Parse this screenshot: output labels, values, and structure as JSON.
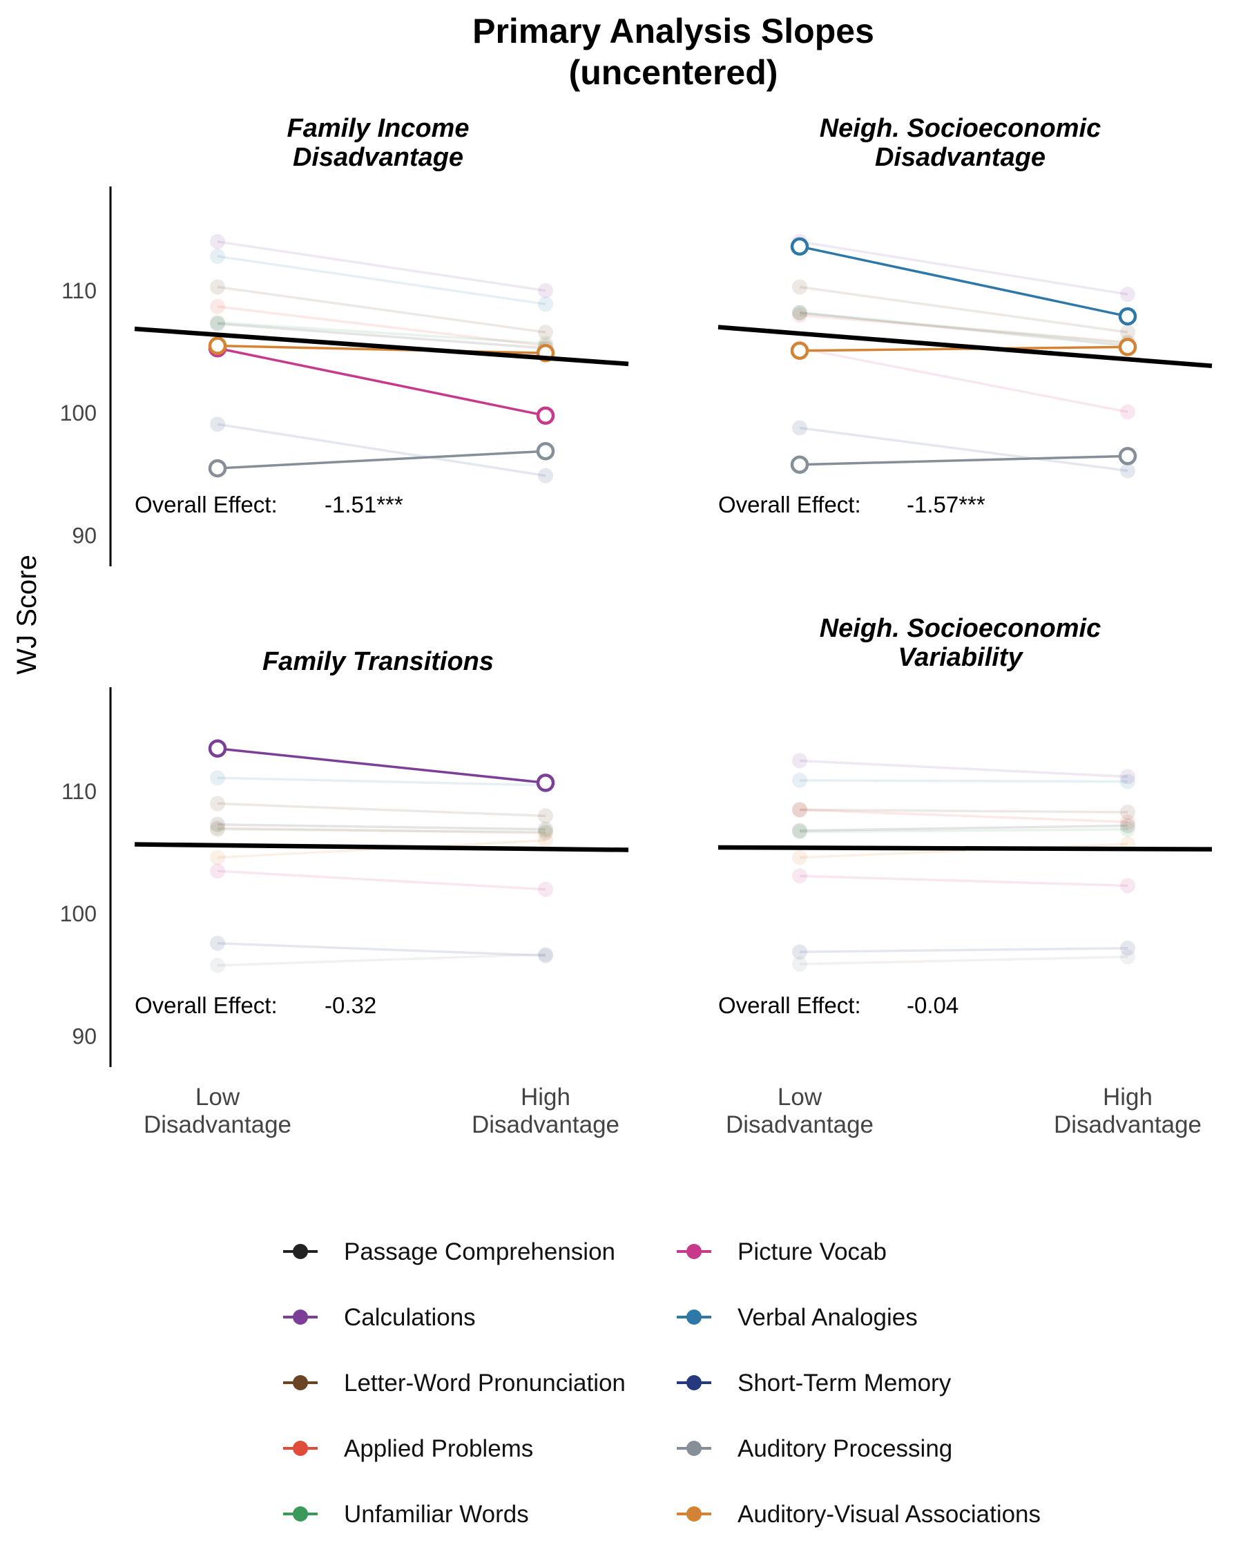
{
  "chart_data": {
    "type": "line",
    "title": [
      "Primary Analysis Slopes",
      "(uncentered)"
    ],
    "ylabel": "WJ Score",
    "x": [
      [
        "Low",
        "Disadvantage"
      ],
      [
        "High",
        "Disadvantage"
      ]
    ],
    "ylim": [
      87.5,
      118.5
    ],
    "yticks": [
      90,
      100,
      110
    ],
    "effect_label": "Overall Effect:",
    "panels": [
      {
        "title": [
          "Family Income",
          "Disadvantage"
        ],
        "effect": "-1.51***",
        "overall": [
          106.4,
          104.5
        ],
        "highlight": [
          "Picture Vocab",
          "Auditory Processing",
          "Auditory-Visual Associations"
        ],
        "series": [
          {
            "name": "Passage Comprehension",
            "values": [
              107.3,
              105.3
            ]
          },
          {
            "name": "Calculations",
            "values": [
              114.0,
              110.0
            ]
          },
          {
            "name": "Letter-Word Pronunciation",
            "values": [
              110.3,
              106.6
            ]
          },
          {
            "name": "Applied Problems",
            "values": [
              108.7,
              105.5
            ]
          },
          {
            "name": "Unfamiliar Words",
            "values": [
              107.4,
              105.7
            ]
          },
          {
            "name": "Picture Vocab",
            "values": [
              105.3,
              99.8
            ]
          },
          {
            "name": "Verbal Analogies",
            "values": [
              112.8,
              108.9
            ]
          },
          {
            "name": "Short-Term Memory",
            "values": [
              99.1,
              94.9
            ]
          },
          {
            "name": "Auditory Processing",
            "values": [
              95.5,
              96.9
            ]
          },
          {
            "name": "Auditory-Visual Associations",
            "values": [
              105.5,
              104.9
            ]
          }
        ]
      },
      {
        "title": [
          "Neigh. Socioeconomic",
          "Disadvantage"
        ],
        "effect": "-1.57***",
        "overall": [
          106.5,
          104.4
        ],
        "highlight": [
          "Verbal Analogies",
          "Auditory Processing",
          "Auditory-Visual Associations"
        ],
        "series": [
          {
            "name": "Passage Comprehension",
            "values": [
              108.2,
              105.5
            ]
          },
          {
            "name": "Calculations",
            "values": [
              114.0,
              109.7
            ]
          },
          {
            "name": "Letter-Word Pronunciation",
            "values": [
              110.3,
              106.6
            ]
          },
          {
            "name": "Applied Problems",
            "values": [
              108.0,
              105.8
            ]
          },
          {
            "name": "Unfamiliar Words",
            "values": [
              108.2,
              105.7
            ]
          },
          {
            "name": "Picture Vocab",
            "values": [
              105.3,
              100.1
            ]
          },
          {
            "name": "Verbal Analogies",
            "values": [
              113.6,
              107.9
            ]
          },
          {
            "name": "Short-Term Memory",
            "values": [
              98.8,
              95.3
            ]
          },
          {
            "name": "Auditory Processing",
            "values": [
              95.8,
              96.5
            ]
          },
          {
            "name": "Auditory-Visual Associations",
            "values": [
              105.1,
              105.4
            ]
          }
        ]
      },
      {
        "title": [
          "Family Transitions"
        ],
        "effect": "-0.32",
        "overall": [
          105.6,
          105.3
        ],
        "highlight": [
          "Calculations"
        ],
        "series": [
          {
            "name": "Passage Comprehension",
            "values": [
              107.3,
              106.9
            ]
          },
          {
            "name": "Calculations",
            "values": [
              113.5,
              110.7
            ]
          },
          {
            "name": "Letter-Word Pronunciation",
            "values": [
              109.0,
              108.0
            ]
          },
          {
            "name": "Applied Problems",
            "values": [
              107.0,
              106.6
            ]
          },
          {
            "name": "Unfamiliar Words",
            "values": [
              106.9,
              106.7
            ]
          },
          {
            "name": "Picture Vocab",
            "values": [
              103.5,
              102.0
            ]
          },
          {
            "name": "Verbal Analogies",
            "values": [
              111.1,
              110.5
            ]
          },
          {
            "name": "Short-Term Memory",
            "values": [
              97.6,
              96.6
            ]
          },
          {
            "name": "Auditory Processing",
            "values": [
              95.8,
              96.7
            ]
          },
          {
            "name": "Auditory-Visual Associations",
            "values": [
              104.6,
              106.0
            ]
          }
        ]
      },
      {
        "title": [
          "Neigh. Socioeconomic",
          "Variability"
        ],
        "effect": "-0.04",
        "overall": [
          105.4,
          105.3
        ],
        "highlight": [],
        "series": [
          {
            "name": "Passage Comprehension",
            "values": [
              106.8,
              107.2
            ]
          },
          {
            "name": "Calculations",
            "values": [
              112.5,
              111.2
            ]
          },
          {
            "name": "Letter-Word Pronunciation",
            "values": [
              108.5,
              108.3
            ]
          },
          {
            "name": "Applied Problems",
            "values": [
              108.5,
              107.5
            ]
          },
          {
            "name": "Unfamiliar Words",
            "values": [
              106.7,
              106.9
            ]
          },
          {
            "name": "Picture Vocab",
            "values": [
              103.1,
              102.3
            ]
          },
          {
            "name": "Verbal Analogies",
            "values": [
              110.9,
              110.8
            ]
          },
          {
            "name": "Short-Term Memory",
            "values": [
              96.9,
              97.2
            ]
          },
          {
            "name": "Auditory Processing",
            "values": [
              95.9,
              96.5
            ]
          },
          {
            "name": "Auditory-Visual Associations",
            "values": [
              104.6,
              105.7
            ]
          }
        ]
      }
    ],
    "legend": {
      "placement": "bottom",
      "items": [
        {
          "name": "Passage Comprehension",
          "color": "#222222"
        },
        {
          "name": "Calculations",
          "color": "#7b3f98"
        },
        {
          "name": "Letter-Word Pronunciation",
          "color": "#6b4423"
        },
        {
          "name": "Applied Problems",
          "color": "#e04b3a"
        },
        {
          "name": "Unfamiliar Words",
          "color": "#3a9a5b"
        },
        {
          "name": "Picture Vocab",
          "color": "#c6398b"
        },
        {
          "name": "Verbal Analogies",
          "color": "#2e78a8"
        },
        {
          "name": "Short-Term Memory",
          "color": "#26397f"
        },
        {
          "name": "Auditory Processing",
          "color": "#868f97"
        },
        {
          "name": "Auditory-Visual Associations",
          "color": "#d48334"
        }
      ]
    },
    "overall_color": "#000000"
  }
}
